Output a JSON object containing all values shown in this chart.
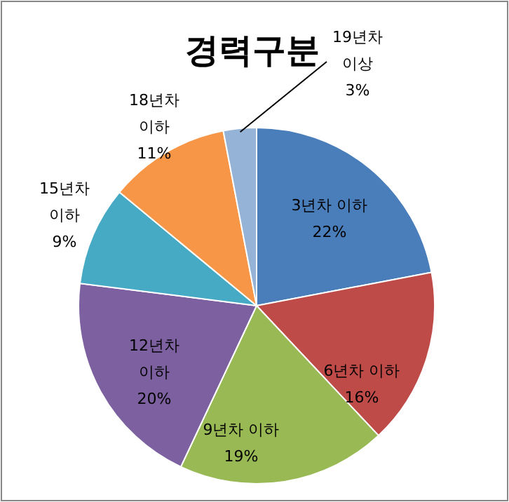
{
  "chart_data": {
    "type": "pie",
    "title": "경력구분",
    "categories": [
      "3년차 이하",
      "6년차 이하",
      "9년차 이하",
      "12년차 이하",
      "15년차 이하",
      "18년차 이하",
      "19년차 이상"
    ],
    "values": [
      22,
      16,
      19,
      20,
      9,
      11,
      3
    ],
    "colors": [
      "#4a7ebb",
      "#be4b48",
      "#98b954",
      "#7d60a0",
      "#46aac5",
      "#f79646",
      "#95b3d7"
    ],
    "value_labels": [
      "22%",
      "16%",
      "19%",
      "20%",
      "9%",
      "11%",
      "3%"
    ],
    "legend": false
  }
}
